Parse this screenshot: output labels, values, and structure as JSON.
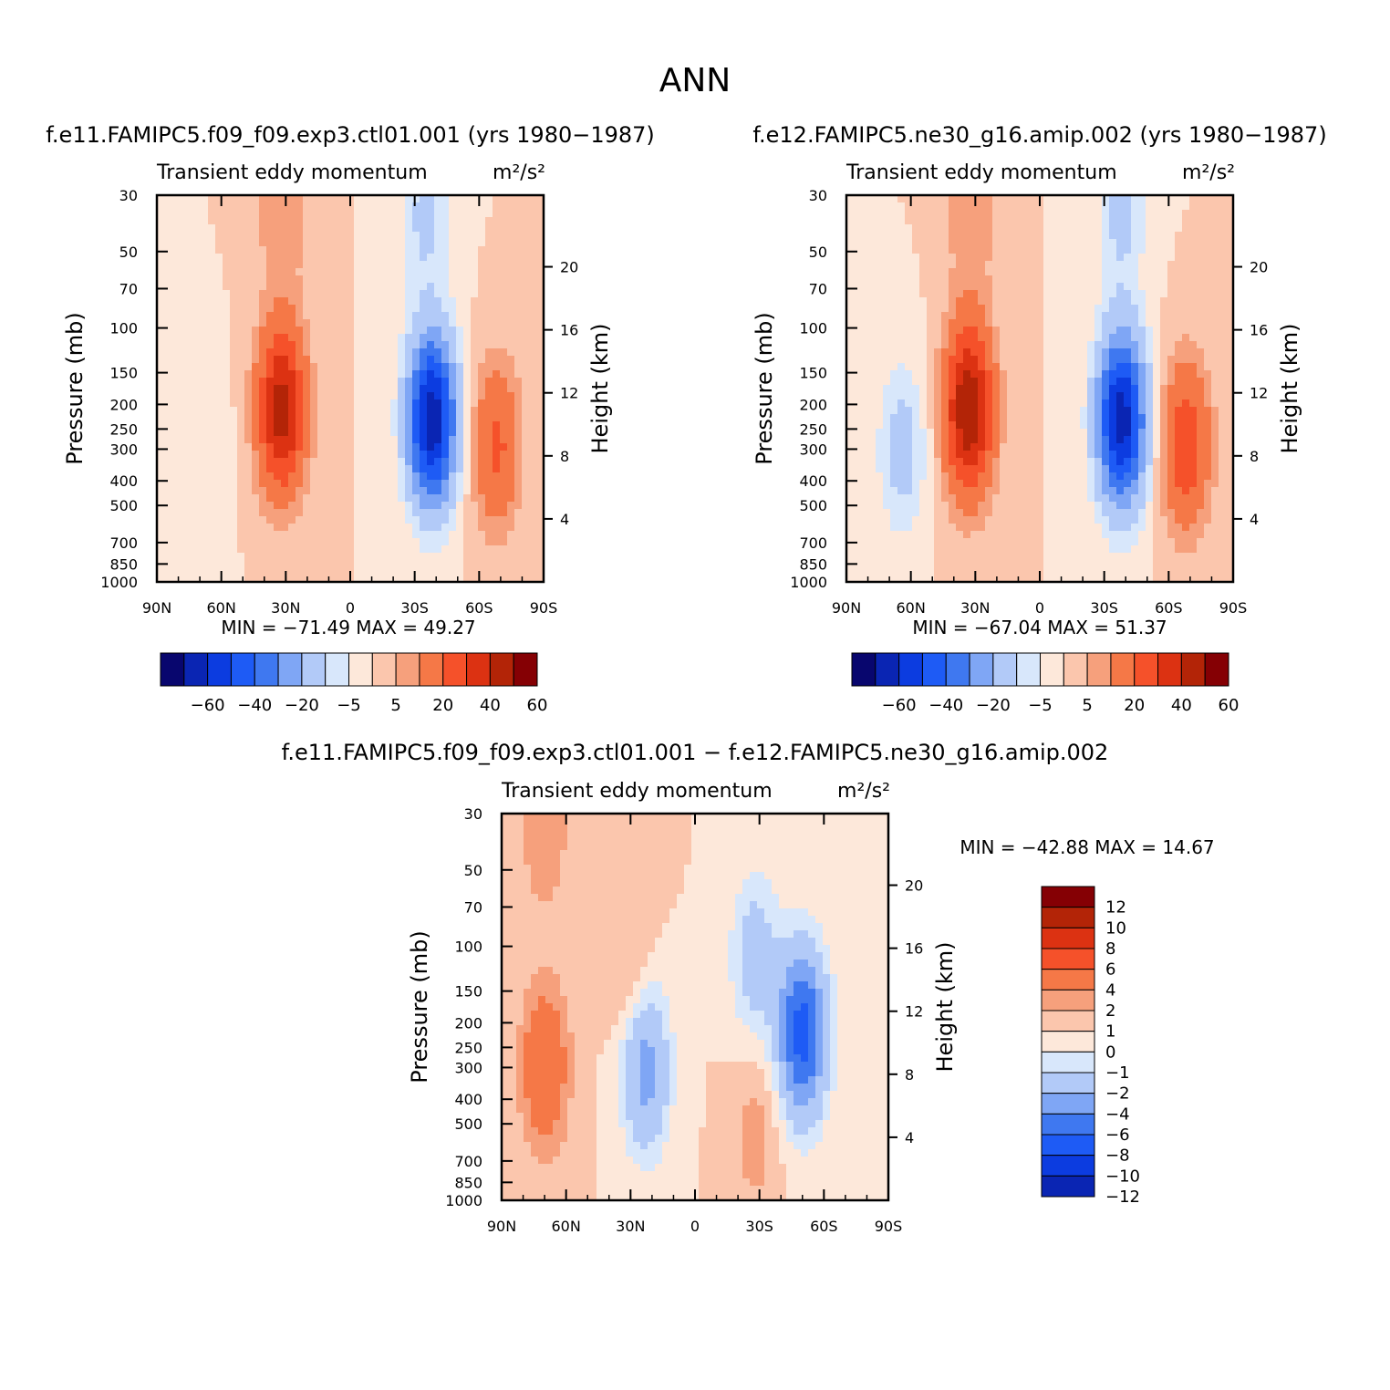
{
  "page": {
    "title": "ANN"
  },
  "colors": {
    "scale16": [
      "#08066e",
      "#0a25b3",
      "#0c3ce0",
      "#1e5bf5",
      "#3f78f0",
      "#7fa6f5",
      "#b2caf8",
      "#d8e7fb",
      "#fde8da",
      "#fbc6ad",
      "#f6a07c",
      "#f57847",
      "#f5512a",
      "#dc3212",
      "#b32407",
      "#850004"
    ]
  },
  "chart_data": [
    {
      "type": "heatmap",
      "title": "f.e11.FAMIPC5.f09_f09.exp3.ctl01.001 (yrs 1980−1987)",
      "subtitle": "Transient eddy momentum",
      "units": "m²/s²",
      "ylabel": "Pressure (mb)",
      "y2label": "Height (km)",
      "x_ticks": [
        "90N",
        "60N",
        "30N",
        "0",
        "30S",
        "60S",
        "90S"
      ],
      "y_ticks": [
        30,
        50,
        70,
        100,
        150,
        200,
        250,
        300,
        400,
        500,
        700,
        850,
        1000
      ],
      "y2_ticks": [
        20,
        16,
        12,
        8,
        4
      ],
      "min_label": "MIN = −71.49",
      "max_label": "MAX =  49.27",
      "levels": [
        -70,
        -60,
        -50,
        -40,
        -30,
        -20,
        -10,
        -5,
        0,
        5,
        10,
        20,
        30,
        40,
        50,
        60
      ],
      "colorbar_labels": [
        "−60",
        "−40",
        "−20",
        "−5",
        "5",
        "20",
        "40",
        "60"
      ],
      "features": [
        {
          "lat": 32,
          "p": 210,
          "value": 45
        },
        {
          "lat": -38,
          "p": 230,
          "value": -68
        },
        {
          "lat": -68,
          "p": 290,
          "value": 22
        },
        {
          "lat": 68,
          "p": 320,
          "value": -5
        },
        {
          "lat": 32,
          "p": 35,
          "value": 10
        },
        {
          "lat": -35,
          "p": 35,
          "value": -12
        }
      ]
    },
    {
      "type": "heatmap",
      "title": "f.e12.FAMIPC5.ne30_g16.amip.002 (yrs 1980−1987)",
      "subtitle": "Transient eddy momentum",
      "units": "m²/s²",
      "ylabel": "Pressure (mb)",
      "y2label": "Height (km)",
      "x_ticks": [
        "90N",
        "60N",
        "30N",
        "0",
        "30S",
        "60S",
        "90S"
      ],
      "y_ticks": [
        30,
        50,
        70,
        100,
        150,
        200,
        250,
        300,
        400,
        500,
        700,
        850,
        1000
      ],
      "y2_ticks": [
        20,
        16,
        12,
        8,
        4
      ],
      "min_label": "MIN = −67.04",
      "max_label": "MAX =  51.37",
      "levels": [
        -70,
        -60,
        -50,
        -40,
        -30,
        -20,
        -10,
        -5,
        0,
        5,
        10,
        20,
        30,
        40,
        50,
        60
      ],
      "colorbar_labels": [
        "−60",
        "−40",
        "−20",
        "−5",
        "5",
        "20",
        "40",
        "60"
      ],
      "features": [
        {
          "lat": 33,
          "p": 210,
          "value": 50
        },
        {
          "lat": -38,
          "p": 230,
          "value": -66
        },
        {
          "lat": -68,
          "p": 290,
          "value": 28
        },
        {
          "lat": 64,
          "p": 300,
          "value": -14
        },
        {
          "lat": 32,
          "p": 35,
          "value": 10
        },
        {
          "lat": -38,
          "p": 35,
          "value": -12
        }
      ]
    },
    {
      "type": "heatmap",
      "title": "f.e11.FAMIPC5.f09_f09.exp3.ctl01.001 − f.e12.FAMIPC5.ne30_g16.amip.002",
      "subtitle": "Transient eddy momentum",
      "units": "m²/s²",
      "ylabel": "Pressure (mb)",
      "y2label": "Height (km)",
      "x_ticks": [
        "90N",
        "60N",
        "30N",
        "0",
        "30S",
        "60S",
        "90S"
      ],
      "y_ticks": [
        30,
        50,
        70,
        100,
        150,
        200,
        250,
        300,
        400,
        500,
        700,
        850,
        1000
      ],
      "y2_ticks": [
        20,
        16,
        12,
        8,
        4
      ],
      "min_label": "MIN = −42.88",
      "max_label": "MAX =  14.67",
      "levels": [
        -12,
        -10,
        -8,
        -6,
        -4,
        -2,
        -1,
        0,
        1,
        2,
        4,
        6,
        8,
        10,
        12
      ],
      "colorbar_labels": [
        "12",
        "10",
        "8",
        "6",
        "4",
        "2",
        "1",
        "0",
        "−1",
        "−2",
        "−4",
        "−6",
        "−8",
        "−10",
        "−12"
      ],
      "features": [
        {
          "lat": 70,
          "p": 300,
          "value": 4
        },
        {
          "lat": 23,
          "p": 300,
          "value": -5
        },
        {
          "lat": -50,
          "p": 220,
          "value": -9
        },
        {
          "lat": -28,
          "p": 110,
          "value": -3
        },
        {
          "lat": 30,
          "p": 130,
          "value": 1.5
        },
        {
          "lat": -28,
          "p": 550,
          "value": 1.5
        },
        {
          "lat": 70,
          "p": 35,
          "value": 2
        }
      ]
    }
  ]
}
